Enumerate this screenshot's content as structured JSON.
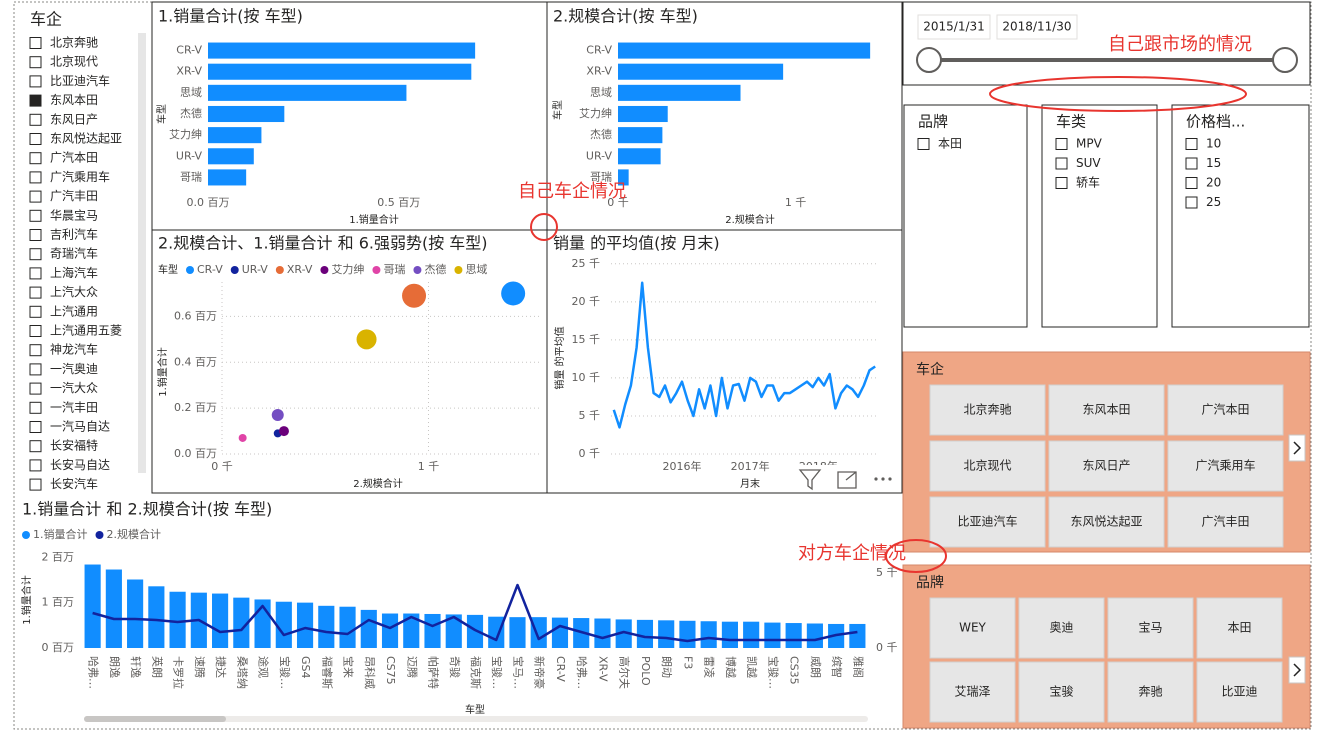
{
  "chart_data": [
    {
      "type": "bar",
      "horizontal": true,
      "title": "1.销量合计(按 车型)",
      "categories": [
        "CR-V",
        "XR-V",
        "思域",
        "杰德",
        "艾力绅",
        "UR-V",
        "哥瑞"
      ],
      "values": [
        0.7,
        0.69,
        0.52,
        0.2,
        0.14,
        0.12,
        0.1
      ],
      "color": "#118DFF",
      "xlim": [
        0,
        0.87
      ],
      "xticks": [
        {
          "value": 0,
          "label": "0.0 百万"
        },
        {
          "value": 0.5,
          "label": "0.5 百万"
        }
      ],
      "xlabel": "1.销量合计",
      "ylabel": "车型",
      "grid": false
    },
    {
      "type": "bar",
      "horizontal": true,
      "title": "2.规模合计(按 车型)",
      "categories": [
        "CR-V",
        "XR-V",
        "思域",
        "艾力绅",
        "杰德",
        "UR-V",
        "哥瑞"
      ],
      "values": [
        1.42,
        0.93,
        0.69,
        0.28,
        0.25,
        0.24,
        0.06
      ],
      "color": "#118DFF",
      "xlim": [
        0,
        1.56
      ],
      "xticks": [
        {
          "value": 0,
          "label": "0 千"
        },
        {
          "value": 1,
          "label": "1 千"
        }
      ],
      "xlabel": "2.规模合计",
      "ylabel": "车型",
      "grid": false
    },
    {
      "type": "scatter",
      "title": "2.规模合计、1.销量合计 和 6.强弱势(按 车型)",
      "legend_title": "车型",
      "series": [
        {
          "name": "CR-V",
          "color": "#118DFF",
          "x": [
            1.41
          ],
          "values": [
            0.7
          ],
          "sizes": [
            12
          ]
        },
        {
          "name": "UR-V",
          "color": "#12239E",
          "x": [
            0.27
          ],
          "values": [
            0.09
          ],
          "sizes": [
            4
          ]
        },
        {
          "name": "XR-V",
          "color": "#E66C37",
          "x": [
            0.93
          ],
          "values": [
            0.69
          ],
          "sizes": [
            12
          ]
        },
        {
          "name": "艾力绅",
          "color": "#6B007B",
          "x": [
            0.3
          ],
          "values": [
            0.1
          ],
          "sizes": [
            5
          ]
        },
        {
          "name": "哥瑞",
          "color": "#E044A7",
          "x": [
            0.1
          ],
          "values": [
            0.07
          ],
          "sizes": [
            4
          ]
        },
        {
          "name": "杰德",
          "color": "#744EC2",
          "x": [
            0.27
          ],
          "values": [
            0.17
          ],
          "sizes": [
            6
          ]
        },
        {
          "name": "思域",
          "color": "#D9B300",
          "x": [
            0.7
          ],
          "values": [
            0.5
          ],
          "sizes": [
            10
          ]
        }
      ],
      "xlim": [
        0,
        1.54
      ],
      "ylim": [
        0,
        0.75
      ],
      "xticks": [
        {
          "value": 0,
          "label": "0 千"
        },
        {
          "value": 1,
          "label": "1 千"
        }
      ],
      "yticks": [
        {
          "value": 0,
          "label": "0.0 百万"
        },
        {
          "value": 0.2,
          "label": "0.2 百万"
        },
        {
          "value": 0.4,
          "label": "0.4 百万"
        },
        {
          "value": 0.6,
          "label": "0.6 百万"
        }
      ],
      "xlabel": "2.规模合计",
      "ylabel": "1.销量合计",
      "grid": true
    },
    {
      "type": "line",
      "title": "销量 的平均值(按 月末)",
      "categories": [
        null,
        null,
        null,
        null,
        null,
        null,
        null,
        null,
        null,
        null,
        null,
        null,
        "2016年",
        null,
        null,
        null,
        null,
        null,
        null,
        null,
        null,
        null,
        null,
        null,
        "2017年",
        null,
        null,
        null,
        null,
        null,
        null,
        null,
        null,
        null,
        null,
        null,
        "2018年",
        null,
        null,
        null,
        null,
        null,
        null,
        null,
        null,
        null,
        null
      ],
      "values": [
        5.8,
        3.5,
        6.5,
        9,
        14,
        22.5,
        14,
        8,
        7.5,
        9,
        6.8,
        8,
        9.5,
        7,
        5,
        8.5,
        6,
        9,
        5,
        10,
        6,
        9,
        9.2,
        7,
        10,
        9.5,
        7.5,
        9,
        9,
        7,
        8,
        8,
        8.5,
        9,
        9.5,
        8.8,
        10,
        9,
        10.5,
        6,
        8,
        9,
        8.5,
        7.5,
        9,
        11,
        11.5
      ],
      "color": "#118DFF",
      "ylim": [
        0,
        25.5
      ],
      "yticks": [
        {
          "value": 0,
          "label": "0 千"
        },
        {
          "value": 5,
          "label": "5 千"
        },
        {
          "value": 10,
          "label": "10 千"
        },
        {
          "value": 15,
          "label": "15 千"
        },
        {
          "value": 20,
          "label": "20 千"
        },
        {
          "value": 25,
          "label": "25 千"
        }
      ],
      "xlabel": "月末",
      "ylabel": "销量 的平均值",
      "grid": true
    },
    {
      "type": "combo",
      "title": "1.销量合计 和 2.规模合计(按 车型)",
      "categories": [
        "哈弗…",
        "朗逸",
        "轩逸",
        "英朗",
        "卡罗拉",
        "速腾",
        "捷达",
        "桑塔纳",
        "途观",
        "宝骏…",
        "GS4",
        "福睿斯",
        "宝来",
        "昂科威",
        "CS75",
        "迈腾",
        "帕萨特",
        "奇骏",
        "福克斯",
        "宝骏…",
        "宝马…",
        "新帝豪",
        "CR-V",
        "哈弗…",
        "XR-V",
        "高尔夫",
        "POLO",
        "朗动",
        "F3",
        "雷凌",
        "博越",
        "凯越",
        "宝骏…",
        "CS35",
        "威朗",
        "缤智",
        "雅阁"
      ],
      "series": [
        {
          "name": "1.销量合计",
          "type": "bar",
          "color": "#118DFF",
          "values": [
            1.84,
            1.73,
            1.51,
            1.36,
            1.24,
            1.22,
            1.2,
            1.11,
            1.07,
            1.02,
            1.0,
            0.93,
            0.91,
            0.84,
            0.76,
            0.76,
            0.75,
            0.74,
            0.73,
            0.69,
            0.68,
            0.68,
            0.67,
            0.66,
            0.65,
            0.63,
            0.62,
            0.61,
            0.6,
            0.59,
            0.58,
            0.58,
            0.56,
            0.55,
            0.54,
            0.53,
            0.53
          ]
        },
        {
          "name": "2.规模合计",
          "type": "line",
          "axis": "y2",
          "color": "#12239E",
          "values": [
            2.33,
            1.93,
            1.93,
            1.87,
            1.73,
            1.87,
            1.07,
            1.2,
            2.8,
            0.87,
            1.33,
            1.07,
            0.93,
            1.87,
            1.33,
            2.07,
            1.47,
            2.07,
            1.2,
            0.53,
            4.2,
            0.6,
            1.47,
            1.07,
            0.67,
            1.07,
            0.73,
            0.67,
            0.47,
            0.67,
            0.53,
            0.53,
            0.53,
            0.53,
            0.53,
            0.87,
            1.07
          ]
        }
      ],
      "ylim": [
        0,
        2.05
      ],
      "y2lim": [
        0,
        6.2
      ],
      "yticks": [
        {
          "value": 0,
          "label": "0 百万"
        },
        {
          "value": 1,
          "label": "1 百万"
        },
        {
          "value": 2,
          "label": "2 百万"
        }
      ],
      "y2ticks": [
        {
          "value": 0,
          "label": "0 千"
        },
        {
          "value": 5,
          "label": "5 千"
        }
      ],
      "xlabel": "车型",
      "ylabel": "1.销量合计",
      "grid": false
    }
  ],
  "company_slicer": {
    "title": "车企",
    "items": [
      "北京奔驰",
      "北京现代",
      "比亚迪汽车",
      "东风本田",
      "东风日产",
      "东风悦达起亚",
      "广汽本田",
      "广汽乘用车",
      "广汽丰田",
      "华晨宝马",
      "吉利汽车",
      "奇瑞汽车",
      "上海汽车",
      "上汽大众",
      "上汽通用",
      "上汽通用五菱",
      "神龙汽车",
      "一汽奥迪",
      "一汽大众",
      "一汽丰田",
      "一汽马自达",
      "长安福特",
      "长安马自达",
      "长安汽车"
    ],
    "checked": [
      3
    ]
  },
  "date_slicer": {
    "start": "2015/1/31",
    "end": "2018/11/30"
  },
  "list_slicers": [
    {
      "title": "品牌",
      "items": [
        "本田"
      ]
    },
    {
      "title": "车类",
      "items": [
        "MPV",
        "SUV",
        "轿车"
      ]
    },
    {
      "title": "价格档...",
      "items": [
        10,
        15,
        20,
        25
      ]
    }
  ],
  "tile_slicers": [
    {
      "title": "车企",
      "items": [
        "北京奔驰",
        "东风本田",
        "广汽本田",
        "北京现代",
        "东风日产",
        "广汽乘用车",
        "比亚迪汽车",
        "东风悦达起亚",
        "广汽丰田"
      ]
    },
    {
      "title": "品牌",
      "items": [
        "WEY",
        "奥迪",
        "宝马",
        "本田",
        "艾瑞泽",
        "宝骏",
        "奔驰",
        "比亚迪"
      ]
    }
  ],
  "annotations": [
    "自己跟市场的情况",
    "自己车企情况",
    "对方车企情况"
  ]
}
